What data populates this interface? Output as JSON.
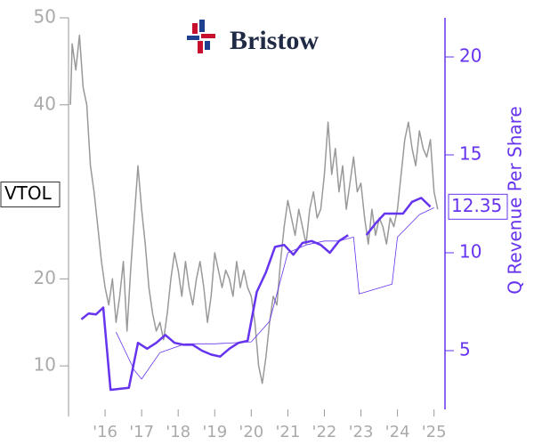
{
  "chart_data": {
    "type": "line",
    "title": "Bristow",
    "y2label": "Q Revenue Per Share",
    "xlim": [
      2015,
      2025.3
    ],
    "xticks": [
      {
        "value": 2016,
        "label": "'16"
      },
      {
        "value": 2017,
        "label": "'17"
      },
      {
        "value": 2018,
        "label": "'18"
      },
      {
        "value": 2019,
        "label": "'19"
      },
      {
        "value": 2020,
        "label": "'20"
      },
      {
        "value": 2021,
        "label": "'21"
      },
      {
        "value": 2022,
        "label": "'22"
      },
      {
        "value": 2023,
        "label": "'23"
      },
      {
        "value": 2024,
        "label": "'24"
      },
      {
        "value": 2025,
        "label": "'25"
      }
    ],
    "ylim": [
      5,
      50
    ],
    "yticks": [
      10,
      20,
      40,
      50
    ],
    "y2lim": [
      2,
      22
    ],
    "y2ticks": [
      5,
      10,
      15,
      20
    ],
    "annotations": [
      {
        "text": "VTOL",
        "y": 29.7,
        "axis": "y"
      },
      {
        "text": "12.35",
        "y": 12.35,
        "axis": "y2"
      }
    ],
    "series": [
      {
        "color": "#999999",
        "axis": "y",
        "line_width": 1.5,
        "x": [
          2015.05,
          2015.1,
          2015.2,
          2015.3,
          2015.4,
          2015.5,
          2015.6,
          2015.7,
          2015.8,
          2015.9,
          2016.0,
          2016.1,
          2016.2,
          2016.3,
          2016.4,
          2016.5,
          2016.6,
          2016.7,
          2016.8,
          2016.9,
          2017.0,
          2017.1,
          2017.2,
          2017.3,
          2017.4,
          2017.5,
          2017.6,
          2017.7,
          2017.8,
          2017.9,
          2018.0,
          2018.1,
          2018.2,
          2018.3,
          2018.4,
          2018.5,
          2018.6,
          2018.7,
          2018.8,
          2018.9,
          2019.0,
          2019.1,
          2019.2,
          2019.3,
          2019.4,
          2019.5,
          2019.6,
          2019.7,
          2019.8,
          2019.9,
          2020.0,
          2020.1,
          2020.2,
          2020.3,
          2020.4,
          2020.5,
          2020.6,
          2020.7,
          2020.8,
          2020.9,
          2021.0,
          2021.1,
          2021.2,
          2021.3,
          2021.4,
          2021.5,
          2021.6,
          2021.7,
          2021.8,
          2021.9,
          2022.0,
          2022.1,
          2022.2,
          2022.3,
          2022.4,
          2022.5,
          2022.6,
          2022.7,
          2022.8,
          2022.9,
          2023.0,
          2023.1,
          2023.2,
          2023.3,
          2023.4,
          2023.5,
          2023.6,
          2023.7,
          2023.8,
          2023.9,
          2024.0,
          2024.1,
          2024.2,
          2024.3,
          2024.4,
          2024.5,
          2024.6,
          2024.7,
          2024.8,
          2024.9,
          2025.0,
          2025.1
        ],
        "values": [
          40,
          47,
          44,
          48,
          42,
          40,
          33,
          30,
          26,
          22,
          19,
          17,
          20,
          15,
          18,
          22,
          14,
          21,
          27,
          33,
          28,
          24,
          19,
          16,
          14,
          15,
          13,
          16,
          20,
          23,
          21,
          18,
          22,
          19,
          17,
          20,
          22,
          19,
          15,
          18,
          23,
          21,
          19,
          21,
          20,
          18,
          22,
          19,
          21,
          19,
          18,
          15,
          10,
          8,
          11,
          15,
          18,
          17,
          22,
          26,
          29,
          27,
          25,
          28,
          26,
          24,
          28,
          30,
          27,
          28,
          32,
          38,
          32,
          35,
          30,
          33,
          28,
          31,
          34,
          30,
          31,
          27,
          24,
          28,
          25,
          27,
          26,
          24,
          27,
          26,
          28,
          32,
          36,
          38,
          35,
          33,
          37,
          35,
          34,
          36,
          30,
          28
        ]
      },
      {
        "color": "#6633ee",
        "axis": "y2",
        "line_width": 2.5,
        "x": [
          2015.35,
          2015.55,
          2015.75,
          2015.95,
          2016.15,
          2016.4,
          2016.65,
          2016.9,
          2017.15,
          2017.4,
          2017.65,
          2017.9,
          2018.15,
          2018.4,
          2018.65,
          2018.9,
          2019.15,
          2019.4,
          2019.65,
          2019.9,
          2020.15,
          2020.4,
          2020.65,
          2020.9,
          2021.15,
          2021.4,
          2021.65,
          2021.9,
          2022.15,
          2022.4,
          2022.65,
          2022.9,
          2023.15,
          2023.4,
          2023.65,
          2023.9,
          2024.15,
          2024.4,
          2024.65,
          2024.9
        ],
        "values": [
          6.6,
          6.9,
          6.85,
          7.2,
          3.0,
          3.05,
          3.1,
          5.4,
          5.1,
          5.4,
          5.8,
          5.4,
          5.3,
          5.3,
          5.0,
          4.8,
          4.7,
          5.1,
          5.4,
          5.5,
          8.0,
          9.0,
          10.3,
          10.4,
          9.9,
          10.5,
          10.6,
          10.4,
          10.0,
          10.6,
          10.9,
          null,
          10.9,
          11.5,
          12.0,
          12.0,
          12.0,
          12.6,
          12.8,
          12.35
        ]
      },
      {
        "color": "#6633ee",
        "axis": "y2",
        "line_width": 0.8,
        "x": [
          2016.3,
          2016.8,
          2017.0,
          2017.5,
          2018.2,
          2019.0,
          2020.0,
          2020.5,
          2021.0,
          2021.5,
          2022.0,
          2022.4,
          2022.8,
          2022.95,
          2023.85,
          2024.0,
          2024.6,
          2025.0
        ],
        "values": [
          5.95,
          4.0,
          3.55,
          4.9,
          5.35,
          5.35,
          5.45,
          6.5,
          10.0,
          10.4,
          10.6,
          10.6,
          10.8,
          7.9,
          8.4,
          10.8,
          11.95,
          12.3
        ]
      }
    ]
  }
}
